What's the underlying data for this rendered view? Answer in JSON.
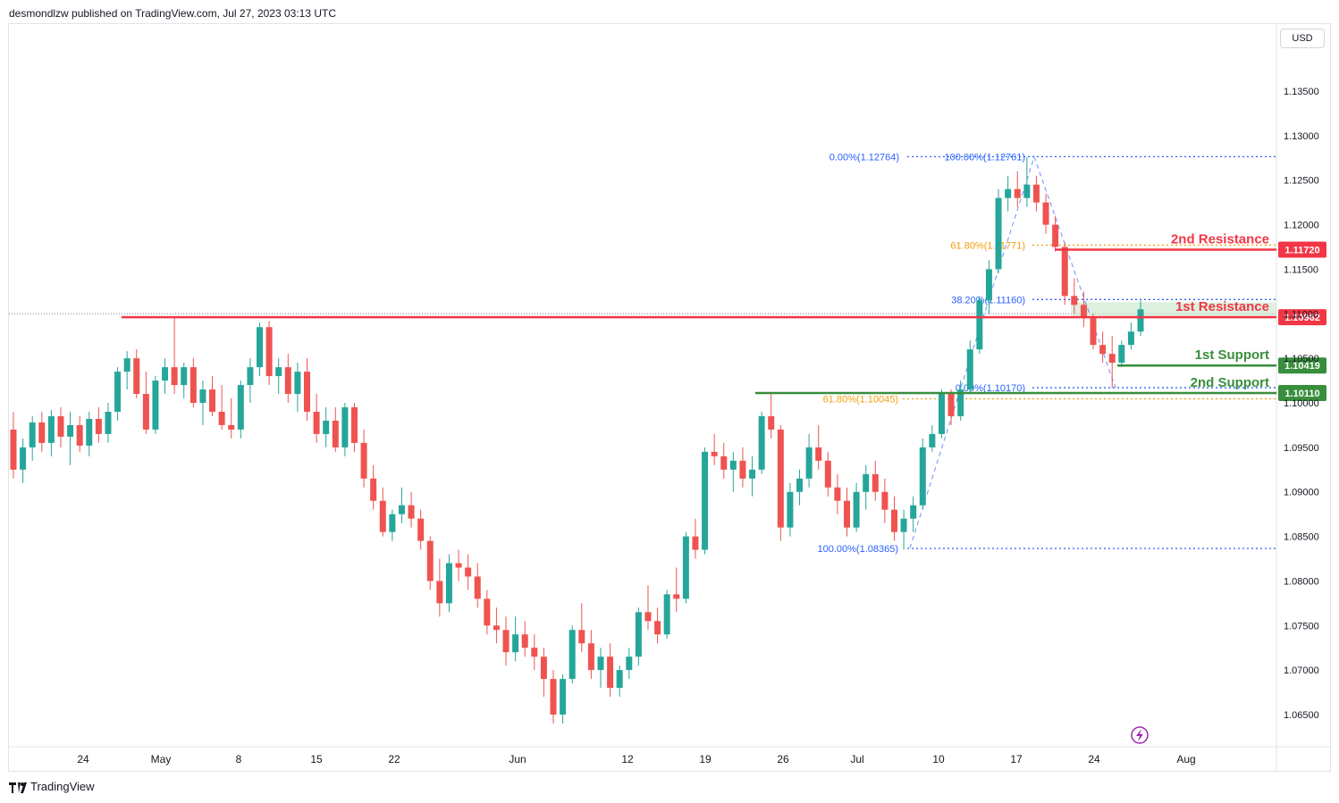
{
  "header": {
    "published_line": "desmondlzw published on TradingView.com, Jul 27, 2023 03:13 UTC"
  },
  "currency_button": "USD",
  "footer": {
    "brand": "TradingView"
  },
  "colors": {
    "up": "#26a69a",
    "down": "#ef5350",
    "resistance": "#f23645",
    "support": "#388e3c",
    "fib_blue": "#2962ff",
    "fib_orange": "#f59e0b",
    "resistance_zone": "#c8e6c9"
  },
  "chart_data": {
    "type": "candlestick",
    "symbol_quote": "USD",
    "ylim": [
      1.0625,
      1.139
    ],
    "y_ticks": [
      "1.13500",
      "1.13000",
      "1.12500",
      "1.12000",
      "1.11500",
      "1.11000",
      "1.10500",
      "1.10000",
      "1.09500",
      "1.09000",
      "1.08500",
      "1.08000",
      "1.07500",
      "1.07000",
      "1.06500"
    ],
    "y_tick_values": [
      1.135,
      1.13,
      1.125,
      1.12,
      1.115,
      1.11,
      1.105,
      1.1,
      1.095,
      1.09,
      1.085,
      1.08,
      1.075,
      1.07,
      1.065
    ],
    "x_ticks": [
      "24",
      "May",
      "8",
      "15",
      "22",
      "Jun",
      "12",
      "19",
      "26",
      "Jul",
      "10",
      "17",
      "24",
      "Aug"
    ],
    "grid": false,
    "current_price_line": 1.11,
    "levels": [
      {
        "name": "2nd Resistance",
        "value": 1.1172,
        "label": "1.11720",
        "kind": "resistance"
      },
      {
        "name": "1st Resistance",
        "value": 1.10962,
        "label": "1.10962",
        "kind": "resistance"
      },
      {
        "name": "1st Support",
        "value": 1.10419,
        "label": "1.10419",
        "kind": "support"
      },
      {
        "name": "2nd Support",
        "value": 1.1011,
        "label": "1.10110",
        "kind": "support"
      }
    ],
    "fib_labels": [
      {
        "text": "0.00%(1.12764)",
        "value": 1.12764,
        "color": "blue"
      },
      {
        "text": "100.00%(1.12761)",
        "value": 1.12761,
        "color": "blue"
      },
      {
        "text": "61.80%(1.11771)",
        "value": 1.11771,
        "color": "orange"
      },
      {
        "text": "38.20%(1.11160)",
        "value": 1.1116,
        "color": "blue"
      },
      {
        "text": "0.00%(1.10170)",
        "value": 1.1017,
        "color": "blue"
      },
      {
        "text": "61.80%(1.10045)",
        "value": 1.10045,
        "color": "orange"
      },
      {
        "text": "100.00%(1.08365)",
        "value": 1.08365,
        "color": "blue"
      }
    ],
    "candles": [
      [
        1.097,
        1.099,
        1.0915,
        1.0925
      ],
      [
        1.0925,
        1.096,
        1.091,
        1.095
      ],
      [
        1.095,
        1.0985,
        1.0935,
        1.0978
      ],
      [
        1.0978,
        1.099,
        1.0945,
        1.0955
      ],
      [
        1.0955,
        1.0992,
        1.094,
        1.0985
      ],
      [
        1.0985,
        1.0995,
        1.095,
        1.0962
      ],
      [
        1.0962,
        1.099,
        1.093,
        1.0975
      ],
      [
        1.0975,
        1.0985,
        1.0945,
        1.0952
      ],
      [
        1.0952,
        1.099,
        1.094,
        1.0982
      ],
      [
        1.0982,
        1.0995,
        1.0955,
        1.0965
      ],
      [
        1.0965,
        1.1,
        1.0955,
        1.099
      ],
      [
        1.099,
        1.104,
        1.098,
        1.1035
      ],
      [
        1.1035,
        1.1058,
        1.1015,
        1.105
      ],
      [
        1.105,
        1.106,
        1.1005,
        1.101
      ],
      [
        1.101,
        1.1035,
        1.0965,
        1.097
      ],
      [
        1.097,
        1.103,
        1.0965,
        1.1025
      ],
      [
        1.1025,
        1.105,
        1.101,
        1.104
      ],
      [
        1.104,
        1.1097,
        1.101,
        1.102
      ],
      [
        1.102,
        1.1045,
        1.1005,
        1.104
      ],
      [
        1.104,
        1.105,
        1.0995,
        1.1
      ],
      [
        1.1,
        1.1025,
        1.0975,
        1.1015
      ],
      [
        1.1015,
        1.103,
        1.0985,
        1.099
      ],
      [
        1.099,
        1.102,
        1.097,
        1.0975
      ],
      [
        1.0975,
        1.1005,
        1.096,
        1.097
      ],
      [
        1.097,
        1.1025,
        1.096,
        1.102
      ],
      [
        1.102,
        1.105,
        1.1,
        1.104
      ],
      [
        1.104,
        1.109,
        1.103,
        1.1085
      ],
      [
        1.1085,
        1.1092,
        1.102,
        1.103
      ],
      [
        1.103,
        1.105,
        1.101,
        1.104
      ],
      [
        1.104,
        1.1055,
        1.1,
        1.101
      ],
      [
        1.101,
        1.1045,
        1.099,
        1.1035
      ],
      [
        1.1035,
        1.105,
        1.098,
        1.099
      ],
      [
        1.099,
        1.101,
        1.0955,
        1.0965
      ],
      [
        1.0965,
        1.0995,
        1.095,
        1.098
      ],
      [
        1.098,
        1.0995,
        1.0945,
        1.095
      ],
      [
        1.095,
        1.1,
        1.094,
        1.0995
      ],
      [
        1.0995,
        1.1,
        1.0945,
        1.0955
      ],
      [
        1.0955,
        1.097,
        1.0905,
        1.0915
      ],
      [
        1.0915,
        1.093,
        1.088,
        1.089
      ],
      [
        1.089,
        1.0905,
        1.085,
        1.0855
      ],
      [
        1.0855,
        1.088,
        1.0845,
        1.0875
      ],
      [
        1.0875,
        1.0905,
        1.0865,
        1.0885
      ],
      [
        1.0885,
        1.09,
        1.086,
        1.087
      ],
      [
        1.087,
        1.088,
        1.0835,
        1.0845
      ],
      [
        1.0845,
        1.085,
        1.079,
        1.08
      ],
      [
        1.08,
        1.0825,
        1.076,
        1.0775
      ],
      [
        1.0775,
        1.083,
        1.0765,
        1.082
      ],
      [
        1.082,
        1.0835,
        1.08,
        1.0815
      ],
      [
        1.0815,
        1.083,
        1.079,
        1.0805
      ],
      [
        1.0805,
        1.082,
        1.077,
        1.078
      ],
      [
        1.078,
        1.079,
        1.074,
        1.075
      ],
      [
        1.075,
        1.077,
        1.073,
        1.0745
      ],
      [
        1.0745,
        1.076,
        1.0705,
        1.072
      ],
      [
        1.072,
        1.076,
        1.071,
        1.074
      ],
      [
        1.074,
        1.0755,
        1.0715,
        1.0725
      ],
      [
        1.0725,
        1.074,
        1.07,
        1.0715
      ],
      [
        1.0715,
        1.0725,
        1.067,
        1.069
      ],
      [
        1.069,
        1.07,
        1.064,
        1.065
      ],
      [
        1.065,
        1.0695,
        1.064,
        1.069
      ],
      [
        1.069,
        1.075,
        1.0685,
        1.0745
      ],
      [
        1.0745,
        1.0775,
        1.072,
        1.073
      ],
      [
        1.073,
        1.0745,
        1.069,
        1.07
      ],
      [
        1.07,
        1.0725,
        1.068,
        1.0715
      ],
      [
        1.0715,
        1.073,
        1.067,
        1.068
      ],
      [
        1.068,
        1.0705,
        1.067,
        1.07
      ],
      [
        1.07,
        1.0725,
        1.069,
        1.0715
      ],
      [
        1.0715,
        1.077,
        1.0705,
        1.0765
      ],
      [
        1.0765,
        1.0795,
        1.0745,
        1.0755
      ],
      [
        1.0755,
        1.077,
        1.073,
        1.074
      ],
      [
        1.074,
        1.079,
        1.0735,
        1.0785
      ],
      [
        1.0785,
        1.0815,
        1.0765,
        1.078
      ],
      [
        1.078,
        1.0855,
        1.0775,
        1.085
      ],
      [
        1.085,
        1.087,
        1.0825,
        1.0835
      ],
      [
        1.0835,
        1.095,
        1.083,
        1.0945
      ],
      [
        1.0945,
        1.0965,
        1.093,
        1.094
      ],
      [
        1.094,
        1.0955,
        1.0915,
        1.0925
      ],
      [
        1.0925,
        1.0945,
        1.09,
        1.0935
      ],
      [
        1.0935,
        1.095,
        1.0905,
        1.0915
      ],
      [
        1.0915,
        1.094,
        1.0895,
        1.0925
      ],
      [
        1.0925,
        1.099,
        1.092,
        1.0985
      ],
      [
        1.0985,
        1.101,
        1.096,
        1.097
      ],
      [
        1.097,
        1.0975,
        1.0845,
        1.086
      ],
      [
        1.086,
        1.091,
        1.085,
        1.09
      ],
      [
        1.09,
        1.0925,
        1.0885,
        1.0915
      ],
      [
        1.0915,
        1.0965,
        1.0905,
        1.095
      ],
      [
        1.095,
        1.0975,
        1.0925,
        1.0935
      ],
      [
        1.0935,
        1.0945,
        1.0895,
        1.0905
      ],
      [
        1.0905,
        1.092,
        1.0875,
        1.089
      ],
      [
        1.089,
        1.0905,
        1.085,
        1.086
      ],
      [
        1.086,
        1.091,
        1.0855,
        1.09
      ],
      [
        1.09,
        1.093,
        1.088,
        1.092
      ],
      [
        1.092,
        1.0935,
        1.089,
        1.09
      ],
      [
        1.09,
        1.0915,
        1.0865,
        1.088
      ],
      [
        1.088,
        1.0895,
        1.0845,
        1.0855
      ],
      [
        1.0855,
        1.088,
        1.0835,
        1.087
      ],
      [
        1.087,
        1.0895,
        1.0855,
        1.0885
      ],
      [
        1.0885,
        1.096,
        1.088,
        1.095
      ],
      [
        1.095,
        1.0975,
        1.0945,
        1.0965
      ],
      [
        1.0965,
        1.1015,
        1.096,
        1.101
      ],
      [
        1.101,
        1.1015,
        1.0975,
        1.0985
      ],
      [
        1.0985,
        1.1025,
        1.098,
        1.1015
      ],
      [
        1.1015,
        1.107,
        1.101,
        1.106
      ],
      [
        1.106,
        1.112,
        1.1055,
        1.1115
      ],
      [
        1.1115,
        1.116,
        1.11,
        1.115
      ],
      [
        1.115,
        1.124,
        1.1145,
        1.123
      ],
      [
        1.123,
        1.1255,
        1.1215,
        1.124
      ],
      [
        1.124,
        1.126,
        1.122,
        1.123
      ],
      [
        1.123,
        1.1276,
        1.122,
        1.1245
      ],
      [
        1.1245,
        1.1255,
        1.1215,
        1.1225
      ],
      [
        1.1225,
        1.1235,
        1.119,
        1.12
      ],
      [
        1.12,
        1.121,
        1.117,
        1.1175
      ],
      [
        1.1175,
        1.118,
        1.111,
        1.112
      ],
      [
        1.112,
        1.114,
        1.11,
        1.111
      ],
      [
        1.111,
        1.1125,
        1.1085,
        1.1095
      ],
      [
        1.1095,
        1.11,
        1.106,
        1.1065
      ],
      [
        1.1065,
        1.108,
        1.1045,
        1.1055
      ],
      [
        1.1055,
        1.1075,
        1.1017,
        1.1045
      ],
      [
        1.1045,
        1.107,
        1.104,
        1.1065
      ],
      [
        1.1065,
        1.109,
        1.106,
        1.108
      ],
      [
        1.108,
        1.1115,
        1.1075,
        1.1105
      ]
    ]
  }
}
